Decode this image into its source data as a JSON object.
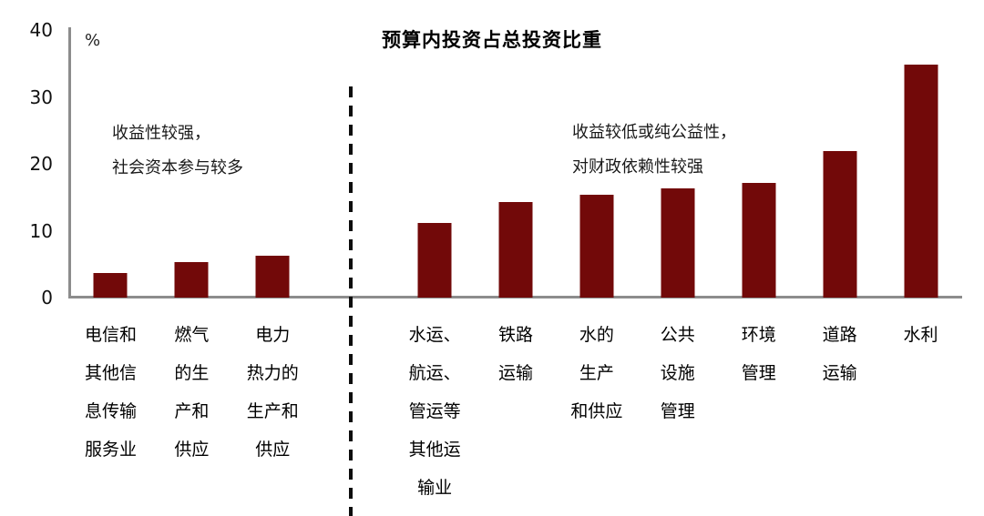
{
  "chart_data": {
    "type": "bar",
    "title": "预算内投资占总投资比重",
    "ylabel": "%",
    "xlabel": "",
    "ylim": [
      0,
      40
    ],
    "yticks": [
      40,
      30,
      20,
      10,
      0
    ],
    "grid": false,
    "legend": "none",
    "bar_color": "#720909",
    "axis_color": "#8c8c8c",
    "categories": [
      "电信和其他信息传输服务业",
      "燃气的生产和供应",
      "电力热力的生产和供应",
      "水运、航运、管运等其他运输业",
      "铁路运输",
      "水的生产和供应",
      "公共设施管理",
      "环境管理",
      "道路运输",
      "水利"
    ],
    "category_lines": [
      [
        "电信和",
        "其他信",
        "息传输",
        "服务业"
      ],
      [
        "燃气",
        "的生",
        "产和",
        "供应"
      ],
      [
        "电力",
        "热力的",
        "生产和",
        "供应"
      ],
      [
        "水运、",
        "航运、",
        "管运等",
        "其他运",
        "输业"
      ],
      [
        "铁路",
        "运输"
      ],
      [
        "水的",
        "生产",
        "和供应"
      ],
      [
        "公共",
        "设施",
        "管理"
      ],
      [
        "环境",
        "管理"
      ],
      [
        "道路",
        "运输"
      ],
      [
        "水利"
      ]
    ],
    "values": [
      3.7,
      5.3,
      6.2,
      11.2,
      14.3,
      15.4,
      16.3,
      17.2,
      21.9,
      34.8
    ],
    "divider": {
      "style": "dashed",
      "after_category_index": 2
    },
    "annotations": [
      {
        "side": "left",
        "lines": [
          "收益性较强，",
          "社会资本参与较多"
        ]
      },
      {
        "side": "right",
        "lines": [
          "收益较低或纯公益性，",
          "对财政依赖性较强"
        ]
      }
    ]
  }
}
